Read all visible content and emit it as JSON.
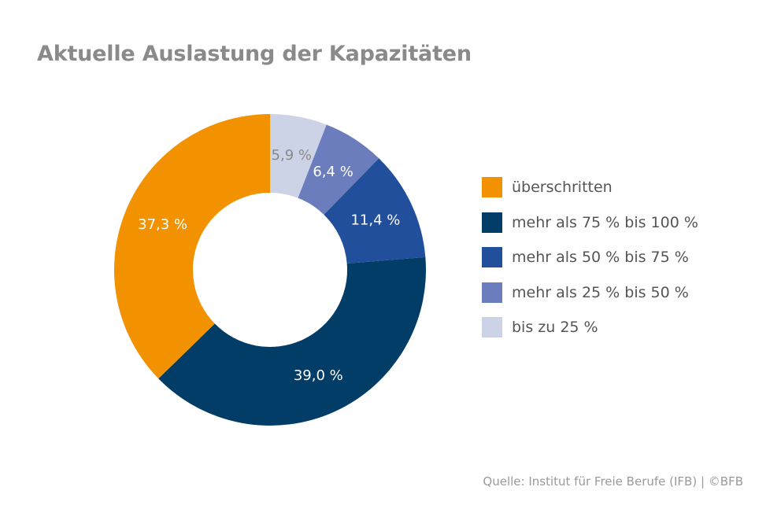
{
  "title": "Aktuelle Auslastung der Kapazitäten",
  "source": "Quelle: Institut für Freie Berufe (IFB) | ©BFB",
  "chart_data": {
    "type": "pie",
    "variant": "donut",
    "title": "Aktuelle Auslastung der Kapazitäten",
    "legend_position": "right",
    "slices": [
      {
        "label": "bis zu 25 %",
        "value": 5.9,
        "value_label": "5,9 %",
        "color": "#cdd3e6",
        "label_color": "#8a8a8a"
      },
      {
        "label": "mehr als 25 % bis 50 %",
        "value": 6.4,
        "value_label": "6,4 %",
        "color": "#6b7dbd",
        "label_color": "#ffffff"
      },
      {
        "label": "mehr als 50 % bis 75 %",
        "value": 11.4,
        "value_label": "11,4 %",
        "color": "#214f9c",
        "label_color": "#ffffff"
      },
      {
        "label": "mehr als 75 % bis 100 %",
        "value": 39.0,
        "value_label": "39,0 %",
        "color": "#013d66",
        "label_color": "#ffffff"
      },
      {
        "label": "überschritten",
        "value": 37.3,
        "value_label": "37,3 %",
        "color": "#f39200",
        "label_color": "#ffffff"
      }
    ],
    "legend_order": [
      "überschritten",
      "mehr als 75 % bis 100 %",
      "mehr als 50 % bis 75 %",
      "mehr als 25 % bis 50 %",
      "bis zu 25 %"
    ]
  }
}
